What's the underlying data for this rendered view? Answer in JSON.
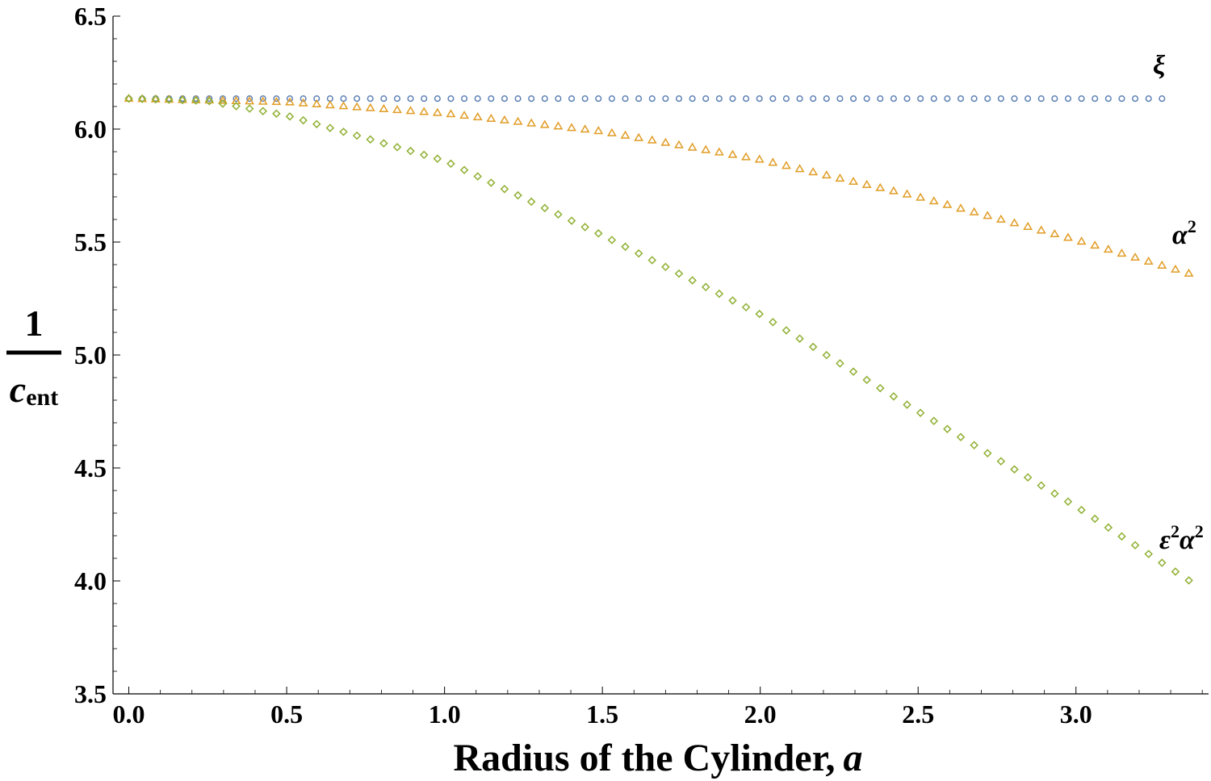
{
  "chart_data": {
    "type": "scatter",
    "xlabel": "Radius of the Cylinder,",
    "xlabel_var": "a",
    "ylabel": {
      "numerator": "1",
      "denominator": "c",
      "subscript": "ent"
    },
    "xlim": [
      -0.05,
      3.42
    ],
    "ylim": [
      3.5,
      6.5
    ],
    "x_ticks": [
      "0.0",
      "0.5",
      "1.0",
      "1.5",
      "2.0",
      "2.5",
      "3.0"
    ],
    "y_ticks": [
      "3.5",
      "4.0",
      "4.5",
      "5.0",
      "5.5",
      "6.0",
      "6.5"
    ],
    "grid": false,
    "series": [
      {
        "name": "ξ",
        "label_parts": [
          "ξ",
          ""
        ],
        "marker": "circle",
        "color": "#5e81b5",
        "x_start": 0.0,
        "x_end": 3.27,
        "x_step": 0.0425,
        "values_at": [
          [
            0.0,
            6.135
          ],
          [
            3.27,
            6.135
          ]
        ]
      },
      {
        "name": "α2",
        "label_parts": [
          "α",
          "2"
        ],
        "marker": "triangle",
        "color": "#e19c24",
        "x_start": 0.0,
        "x_end": 3.36,
        "x_step": 0.0425,
        "values_at": [
          [
            0.0,
            6.135
          ],
          [
            0.5,
            6.12
          ],
          [
            1.0,
            6.07
          ],
          [
            1.5,
            5.99
          ],
          [
            2.0,
            5.865
          ],
          [
            2.5,
            5.7
          ],
          [
            3.0,
            5.51
          ],
          [
            3.36,
            5.36
          ]
        ]
      },
      {
        "name": "ε2α2",
        "label_parts": [
          "ε",
          "2",
          "α",
          "2"
        ],
        "marker": "diamond",
        "color": "#8fb032",
        "x_start": 0.0,
        "x_end": 3.36,
        "x_step": 0.0425,
        "values_at": [
          [
            0.0,
            6.135
          ],
          [
            0.25,
            6.125
          ],
          [
            0.5,
            6.06
          ],
          [
            1.0,
            5.86
          ],
          [
            1.5,
            5.53
          ],
          [
            2.0,
            5.18
          ],
          [
            2.5,
            4.75
          ],
          [
            3.0,
            4.33
          ],
          [
            3.36,
            4.0
          ]
        ]
      }
    ]
  }
}
